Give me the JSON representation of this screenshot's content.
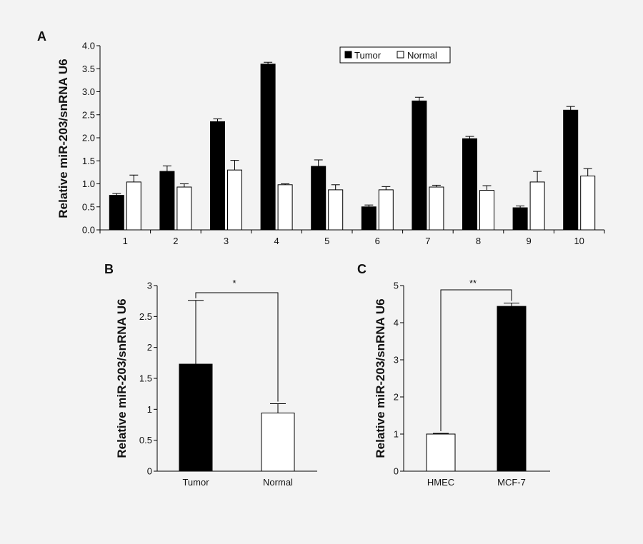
{
  "chart_data": [
    {
      "panel": "A",
      "type": "bar",
      "ylabel": "Relative miR-203/snRNA U6",
      "ylim": [
        0,
        4.0
      ],
      "yticks": [
        "0.0",
        "0.5",
        "1.0",
        "1.5",
        "2.0",
        "2.5",
        "3.0",
        "3.5",
        "4.0"
      ],
      "ytick_values": [
        0,
        0.5,
        1,
        1.5,
        2,
        2.5,
        3,
        3.5,
        4
      ],
      "categories": [
        "1",
        "2",
        "3",
        "4",
        "5",
        "6",
        "7",
        "8",
        "9",
        "10"
      ],
      "legend_position": "top-right",
      "series": [
        {
          "name": "Tumor",
          "color": "#000000",
          "values": [
            0.75,
            1.27,
            2.35,
            3.6,
            1.38,
            0.5,
            2.8,
            1.98,
            0.48,
            2.6
          ],
          "errors": [
            0.04,
            0.12,
            0.06,
            0.04,
            0.14,
            0.04,
            0.08,
            0.05,
            0.04,
            0.08
          ]
        },
        {
          "name": "Normal",
          "color": "#ffffff",
          "values": [
            1.04,
            0.93,
            1.3,
            0.98,
            0.87,
            0.87,
            0.93,
            0.86,
            1.04,
            1.17
          ],
          "errors": [
            0.15,
            0.07,
            0.21,
            0.02,
            0.11,
            0.07,
            0.04,
            0.1,
            0.23,
            0.16
          ]
        }
      ]
    },
    {
      "panel": "B",
      "type": "bar",
      "ylabel": "Relative miR-203/snRNA U6",
      "ylim": [
        0,
        3
      ],
      "yticks": [
        "0",
        "0.5",
        "1",
        "1.5",
        "2",
        "2.5",
        "3"
      ],
      "ytick_values": [
        0,
        0.5,
        1,
        1.5,
        2,
        2.5,
        3
      ],
      "categories": [
        "Tumor",
        "Normal"
      ],
      "values": [
        1.73,
        0.94
      ],
      "errors": [
        1.03,
        0.15
      ],
      "colors": [
        "#000000",
        "#ffffff"
      ],
      "significance": "*"
    },
    {
      "panel": "C",
      "type": "bar",
      "ylabel": "Relative miR-203/snRNA U6",
      "ylim": [
        0,
        5
      ],
      "yticks": [
        "0",
        "1",
        "2",
        "3",
        "4",
        "5"
      ],
      "ytick_values": [
        0,
        1,
        2,
        3,
        4,
        5
      ],
      "categories": [
        "HMEC",
        "MCF-7"
      ],
      "values": [
        1.0,
        4.44
      ],
      "errors": [
        0.02,
        0.09
      ],
      "colors": [
        "#ffffff",
        "#000000"
      ],
      "significance": "**"
    }
  ]
}
